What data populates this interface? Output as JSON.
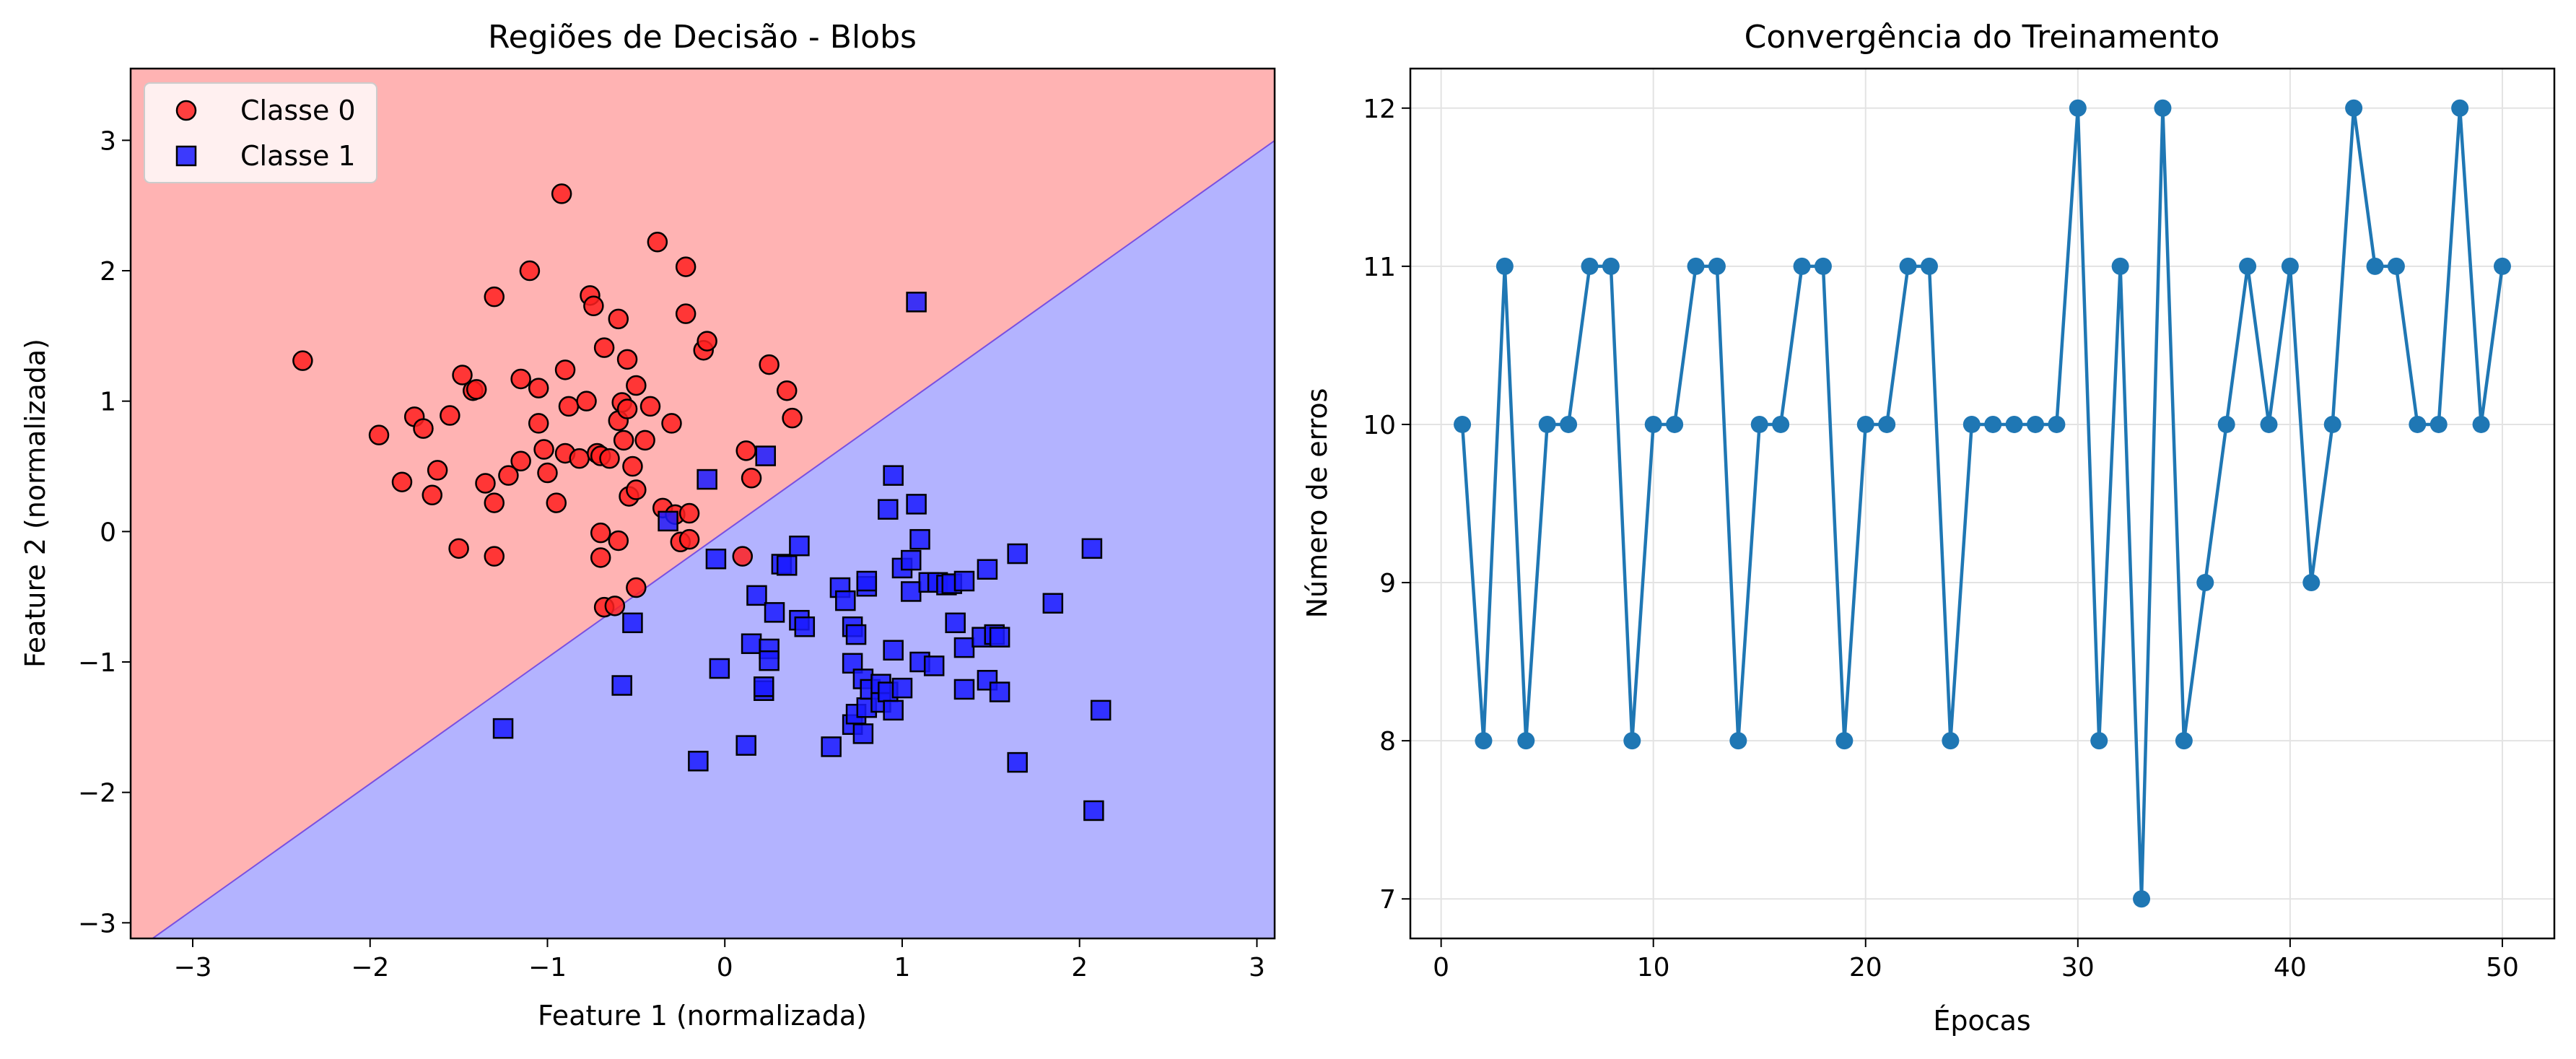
{
  "chart_data": [
    {
      "type": "scatter",
      "title": "Regiões de Decisão - Blobs",
      "xlabel": "Feature 1 (normalizada)",
      "ylabel": "Feature 2 (normalizada)",
      "xlim": [
        -3.35,
        3.1
      ],
      "ylim": [
        -3.12,
        3.55
      ],
      "xticks": [
        -3,
        -2,
        -1,
        0,
        1,
        2,
        3
      ],
      "yticks": [
        -3,
        -2,
        -1,
        0,
        1,
        2,
        3
      ],
      "grid": false,
      "legend_position": "top-left",
      "decision_boundary": {
        "slope": 0.967,
        "intercept": 0.0
      },
      "region_colors": {
        "class0": "#ffb3b3",
        "class1": "#b3b3ff"
      },
      "series": [
        {
          "name": "Classe 0",
          "marker": "circle",
          "color": "#ff2020",
          "points": [
            [
              -2.38,
              1.31
            ],
            [
              -1.95,
              0.74
            ],
            [
              -1.82,
              0.38
            ],
            [
              -1.75,
              0.88
            ],
            [
              -1.7,
              0.79
            ],
            [
              -1.65,
              0.28
            ],
            [
              -1.62,
              0.47
            ],
            [
              -1.55,
              0.89
            ],
            [
              -1.5,
              -0.13
            ],
            [
              -1.48,
              1.2
            ],
            [
              -1.42,
              1.08
            ],
            [
              -1.4,
              1.09
            ],
            [
              -1.35,
              0.37
            ],
            [
              -1.3,
              1.8
            ],
            [
              -1.3,
              0.22
            ],
            [
              -1.3,
              -0.19
            ],
            [
              -1.22,
              0.43
            ],
            [
              -1.15,
              0.54
            ],
            [
              -1.15,
              1.17
            ],
            [
              -1.1,
              2.0
            ],
            [
              -1.05,
              1.1
            ],
            [
              -1.05,
              0.83
            ],
            [
              -1.02,
              0.63
            ],
            [
              -1.0,
              0.45
            ],
            [
              -0.95,
              0.22
            ],
            [
              -0.92,
              2.59
            ],
            [
              -0.9,
              1.24
            ],
            [
              -0.9,
              0.6
            ],
            [
              -0.88,
              0.96
            ],
            [
              -0.82,
              0.56
            ],
            [
              -0.78,
              1.0
            ],
            [
              -0.76,
              1.81
            ],
            [
              -0.74,
              1.73
            ],
            [
              -0.72,
              0.6
            ],
            [
              -0.7,
              0.58
            ],
            [
              -0.7,
              -0.01
            ],
            [
              -0.7,
              -0.2
            ],
            [
              -0.68,
              1.41
            ],
            [
              -0.68,
              -0.58
            ],
            [
              -0.65,
              0.56
            ],
            [
              -0.62,
              -0.57
            ],
            [
              -0.6,
              0.85
            ],
            [
              -0.6,
              -0.07
            ],
            [
              -0.6,
              1.63
            ],
            [
              -0.58,
              0.99
            ],
            [
              -0.57,
              0.7
            ],
            [
              -0.55,
              1.32
            ],
            [
              -0.55,
              0.94
            ],
            [
              -0.54,
              0.27
            ],
            [
              -0.52,
              0.5
            ],
            [
              -0.5,
              1.12
            ],
            [
              -0.5,
              0.32
            ],
            [
              -0.5,
              -0.43
            ],
            [
              -0.45,
              0.7
            ],
            [
              -0.42,
              0.96
            ],
            [
              -0.38,
              2.22
            ],
            [
              -0.35,
              0.18
            ],
            [
              -0.3,
              0.83
            ],
            [
              -0.28,
              0.13
            ],
            [
              -0.25,
              -0.08
            ],
            [
              -0.22,
              1.67
            ],
            [
              -0.22,
              2.03
            ],
            [
              -0.2,
              0.14
            ],
            [
              -0.2,
              -0.06
            ],
            [
              -0.12,
              1.39
            ],
            [
              -0.1,
              1.46
            ],
            [
              0.1,
              -0.19
            ],
            [
              0.12,
              0.62
            ],
            [
              0.15,
              0.41
            ],
            [
              0.25,
              1.28
            ],
            [
              0.35,
              1.08
            ],
            [
              0.38,
              0.87
            ]
          ]
        },
        {
          "name": "Classe 1",
          "marker": "square",
          "color": "#1a1aff",
          "points": [
            [
              -1.25,
              -1.51
            ],
            [
              -0.58,
              -1.18
            ],
            [
              -0.52,
              -0.7
            ],
            [
              -0.32,
              0.08
            ],
            [
              -0.15,
              -1.76
            ],
            [
              -0.1,
              0.4
            ],
            [
              -0.05,
              -0.21
            ],
            [
              -0.03,
              -1.05
            ],
            [
              0.12,
              -1.64
            ],
            [
              0.15,
              -0.86
            ],
            [
              0.18,
              -0.49
            ],
            [
              0.22,
              -1.22
            ],
            [
              0.22,
              -1.19
            ],
            [
              0.23,
              0.58
            ],
            [
              0.25,
              -0.9
            ],
            [
              0.25,
              -0.99
            ],
            [
              0.28,
              -0.62
            ],
            [
              0.32,
              -0.25
            ],
            [
              0.35,
              -0.26
            ],
            [
              0.42,
              -0.68
            ],
            [
              0.42,
              -0.11
            ],
            [
              0.45,
              -0.73
            ],
            [
              0.6,
              -1.65
            ],
            [
              0.65,
              -0.43
            ],
            [
              0.68,
              -0.53
            ],
            [
              0.72,
              -0.73
            ],
            [
              0.72,
              -1.01
            ],
            [
              0.72,
              -1.48
            ],
            [
              0.74,
              -0.79
            ],
            [
              0.74,
              -1.4
            ],
            [
              0.78,
              -1.13
            ],
            [
              0.78,
              -1.55
            ],
            [
              0.8,
              -1.35
            ],
            [
              0.8,
              -0.42
            ],
            [
              0.8,
              -0.38
            ],
            [
              0.82,
              -1.21
            ],
            [
              0.88,
              -1.17
            ],
            [
              0.88,
              -1.31
            ],
            [
              0.92,
              -1.23
            ],
            [
              0.92,
              0.17
            ],
            [
              0.95,
              -0.91
            ],
            [
              0.95,
              -1.37
            ],
            [
              0.95,
              0.43
            ],
            [
              1.0,
              -0.28
            ],
            [
              1.0,
              -1.2
            ],
            [
              1.05,
              -0.22
            ],
            [
              1.05,
              -0.46
            ],
            [
              1.08,
              1.76
            ],
            [
              1.08,
              0.21
            ],
            [
              1.1,
              -1.0
            ],
            [
              1.1,
              -0.06
            ],
            [
              1.15,
              -0.39
            ],
            [
              1.18,
              -1.03
            ],
            [
              1.2,
              -0.39
            ],
            [
              1.25,
              -0.41
            ],
            [
              1.28,
              -0.4
            ],
            [
              1.3,
              -0.7
            ],
            [
              1.35,
              -1.21
            ],
            [
              1.35,
              -0.89
            ],
            [
              1.35,
              -0.38
            ],
            [
              1.45,
              -0.81
            ],
            [
              1.48,
              -1.14
            ],
            [
              1.48,
              -0.29
            ],
            [
              1.52,
              -0.79
            ],
            [
              1.55,
              -0.81
            ],
            [
              1.55,
              -1.23
            ],
            [
              1.65,
              -0.17
            ],
            [
              1.65,
              -1.77
            ],
            [
              1.85,
              -0.55
            ],
            [
              2.07,
              -0.13
            ],
            [
              2.08,
              -2.14
            ],
            [
              2.12,
              -1.37
            ]
          ]
        }
      ]
    },
    {
      "type": "line",
      "title": "Convergência do Treinamento",
      "xlabel": "Épocas",
      "ylabel": "Número de erros",
      "xlim": [
        -1.45,
        52.45
      ],
      "ylim": [
        6.75,
        12.25
      ],
      "xticks": [
        0,
        10,
        20,
        30,
        40,
        50
      ],
      "yticks": [
        7,
        8,
        9,
        10,
        11,
        12
      ],
      "grid": true,
      "series": [
        {
          "color": "#1f77b4",
          "x": [
            1,
            2,
            3,
            4,
            5,
            6,
            7,
            8,
            9,
            10,
            11,
            12,
            13,
            14,
            15,
            16,
            17,
            18,
            19,
            20,
            21,
            22,
            23,
            24,
            25,
            26,
            27,
            28,
            29,
            30,
            31,
            32,
            33,
            34,
            35,
            36,
            37,
            38,
            39,
            40,
            41,
            42,
            43,
            44,
            45,
            46,
            47,
            48,
            49,
            50
          ],
          "y": [
            10,
            8,
            11,
            8,
            10,
            10,
            11,
            11,
            8,
            10,
            10,
            11,
            11,
            8,
            10,
            10,
            11,
            11,
            8,
            10,
            10,
            11,
            11,
            8,
            10,
            10,
            10,
            10,
            10,
            12,
            8,
            11,
            7,
            12,
            8,
            9,
            10,
            11,
            10,
            11,
            9,
            10,
            12,
            11,
            11,
            10,
            10,
            12,
            10,
            11
          ]
        }
      ]
    }
  ]
}
